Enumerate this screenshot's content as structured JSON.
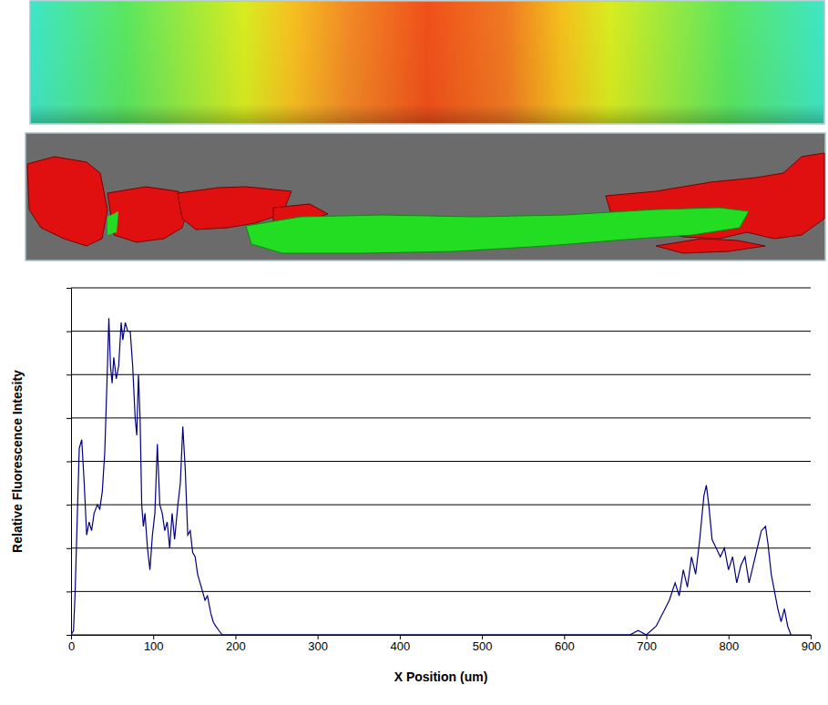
{
  "chart_data": {
    "type": "line",
    "x_label": "X Position (um)",
    "y_label": "Relative Fluorescence Intesity",
    "x": [
      0,
      3,
      5,
      8,
      10,
      13,
      16,
      19,
      22,
      25,
      28,
      32,
      35,
      38,
      41,
      44,
      46,
      48,
      50,
      52,
      55,
      58,
      61,
      63,
      66,
      69,
      72,
      75,
      78,
      80,
      82,
      84,
      86,
      88,
      90,
      93,
      96,
      99,
      102,
      105,
      108,
      111,
      114,
      117,
      120,
      123,
      126,
      130,
      133,
      136,
      139,
      142,
      145,
      148,
      151,
      154,
      157,
      160,
      163,
      166,
      170,
      173,
      176,
      180,
      184,
      190,
      300,
      400,
      500,
      600,
      680,
      690,
      700,
      712,
      720,
      728,
      735,
      740,
      745,
      750,
      755,
      760,
      765,
      770,
      773,
      776,
      780,
      785,
      790,
      795,
      800,
      805,
      810,
      815,
      820,
      825,
      830,
      835,
      840,
      845,
      848,
      852,
      856,
      860,
      864,
      868,
      872,
      876
    ],
    "values": [
      0,
      0.1,
      1,
      3,
      4.3,
      4.5,
      3.5,
      2.3,
      2.6,
      2.4,
      2.8,
      3.0,
      2.9,
      3.3,
      4.2,
      6.0,
      7.3,
      6.2,
      5.8,
      6.4,
      5.9,
      6.2,
      7.2,
      6.8,
      7.2,
      7.0,
      7.0,
      6.2,
      5.0,
      4.6,
      6.0,
      5.0,
      3.0,
      2.5,
      2.8,
      2.0,
      1.5,
      2.3,
      2.8,
      4.4,
      3.0,
      2.8,
      2.4,
      2.6,
      2.0,
      2.8,
      2.2,
      3.0,
      3.5,
      4.8,
      3.8,
      2.3,
      2.4,
      1.9,
      1.8,
      1.4,
      1.2,
      1.0,
      0.8,
      0.9,
      0.5,
      0.3,
      0.2,
      0.1,
      0,
      0,
      0,
      0,
      0,
      0,
      0,
      0.1,
      0,
      0.2,
      0.5,
      0.8,
      1.2,
      0.9,
      1.5,
      1.1,
      1.8,
      1.4,
      2.2,
      3.2,
      3.45,
      3.0,
      2.2,
      2.0,
      1.8,
      2.0,
      1.5,
      1.8,
      1.2,
      1.6,
      1.8,
      1.2,
      1.6,
      2.0,
      2.4,
      2.5,
      2.1,
      1.4,
      1.0,
      0.6,
      0.3,
      0.6,
      0.2,
      0
    ],
    "color": "#000080",
    "xlim": [
      0,
      900
    ],
    "xticks": [
      0,
      100,
      200,
      300,
      400,
      500,
      600,
      700,
      800,
      900
    ],
    "ylim": [
      0,
      8
    ],
    "yticks": [
      0,
      1,
      2,
      3,
      4,
      5,
      6,
      7,
      8
    ],
    "grid": true,
    "tick_labels": "x"
  }
}
